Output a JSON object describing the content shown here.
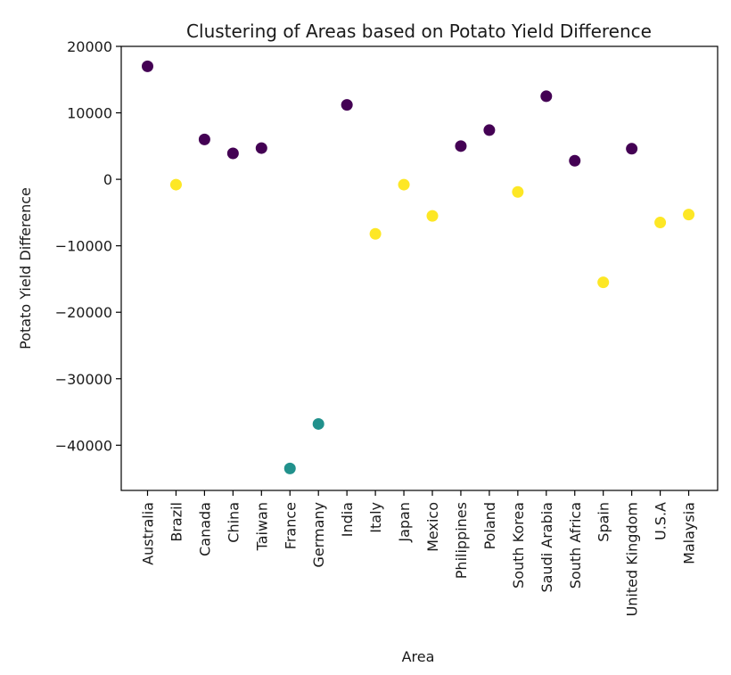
{
  "chart_data": {
    "type": "scatter",
    "title": "Clustering of Areas based on Potato Yield Difference",
    "xlabel": "Area",
    "ylabel": "Potato Yield Difference",
    "ylim": [
      -46800,
      20000
    ],
    "yticks": [
      20000,
      10000,
      0,
      -10000,
      -20000,
      -30000,
      -40000
    ],
    "ytick_labels": [
      "20000",
      "10000",
      "0",
      "−10000",
      "−20000",
      "−30000",
      "−40000"
    ],
    "grid": false,
    "cluster_colors": [
      "#440154",
      "#21918c",
      "#fde725"
    ],
    "categories": [
      "Australia",
      "Brazil",
      "Canada",
      "China",
      "Taiwan",
      "France",
      "Germany",
      "India",
      "Italy",
      "Japan",
      "Mexico",
      "Philippines",
      "Poland",
      "South Korea",
      "Saudi Arabia",
      "South Africa",
      "Spain",
      "United Kingdom",
      "U.S.A",
      "Malaysia"
    ],
    "values": [
      17000,
      -800,
      6000,
      3900,
      4700,
      -43500,
      -36800,
      11200,
      -8200,
      -800,
      -5500,
      5000,
      7400,
      -1900,
      12500,
      2800,
      -15500,
      4600,
      -6500,
      -5300
    ],
    "clusters": [
      0,
      2,
      0,
      0,
      0,
      1,
      1,
      0,
      2,
      2,
      2,
      0,
      0,
      2,
      0,
      0,
      2,
      0,
      2,
      2
    ]
  }
}
